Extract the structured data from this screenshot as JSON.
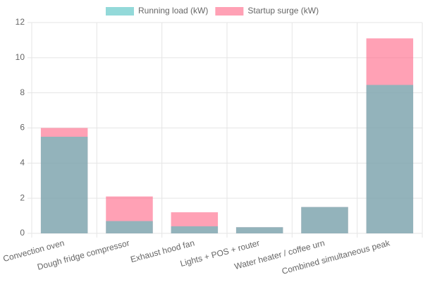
{
  "chart_data": {
    "type": "bar",
    "overlap": true,
    "categories": [
      "Convection oven",
      "Dough fridge compressor",
      "Exhaust hood fan",
      "Lights + POS + router",
      "Water heater / coffee urn",
      "Combined simultaneous peak"
    ],
    "series": [
      {
        "name": "Running load (kW)",
        "color": "#4bc0c0",
        "values": [
          5.5,
          0.7,
          0.4,
          0.35,
          1.5,
          8.45
        ]
      },
      {
        "name": "Startup surge (kW)",
        "color": "#ff6384",
        "values": [
          6,
          2.1,
          1.2,
          0.35,
          1.5,
          11.1
        ]
      }
    ],
    "ylim": [
      0,
      12
    ],
    "yticks": [
      0,
      2,
      4,
      6,
      8,
      10,
      12
    ],
    "grid": true,
    "legend": "top"
  }
}
